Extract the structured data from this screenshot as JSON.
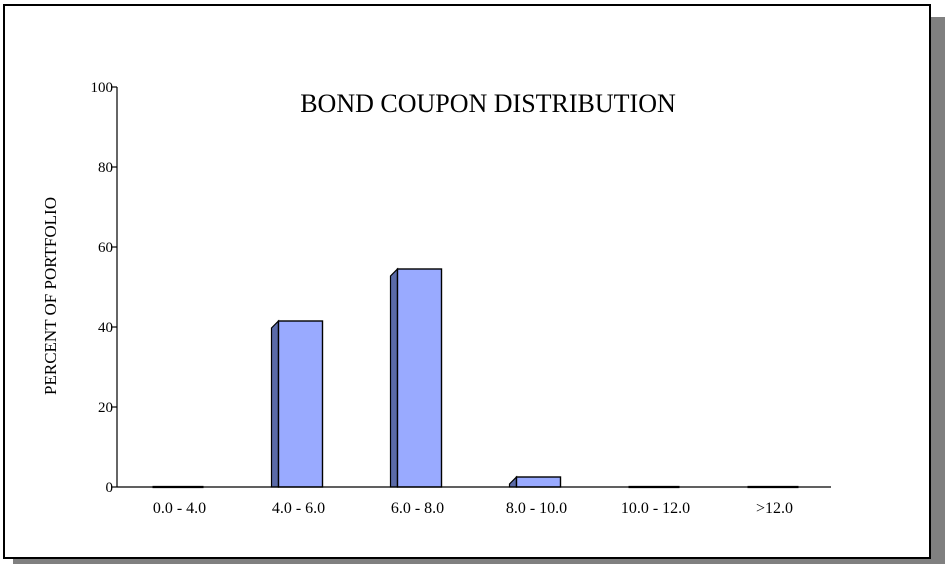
{
  "chart_data": {
    "type": "bar",
    "title": "BOND COUPON DISTRIBUTION",
    "ylabel": "PERCENT OF PORTFOLIO",
    "xlabel": "",
    "categories": [
      "0.0 - 4.0",
      "4.0 - 6.0",
      "6.0 - 8.0",
      "8.0 - 10.0",
      "10.0 - 12.0",
      ">12.0"
    ],
    "values": [
      0,
      41.5,
      54.5,
      2.5,
      0,
      0
    ],
    "ylim": [
      0,
      100
    ],
    "yticks": [
      0,
      20,
      40,
      60,
      80,
      100
    ],
    "grid": false,
    "legend": "none",
    "colors": {
      "bar_front": "#99aaff",
      "bar_side": "#5a6aa8",
      "bar_top": "#c2cdff",
      "frame_shadow": "#808080",
      "stroke": "#000000"
    }
  }
}
